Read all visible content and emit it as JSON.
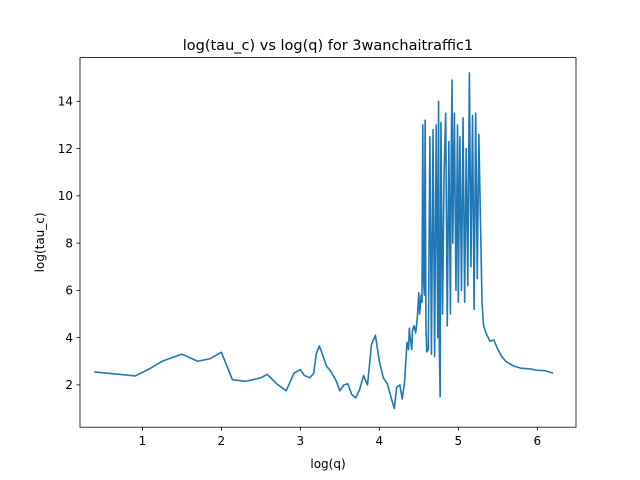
{
  "chart_data": {
    "type": "line",
    "title": "log(tau_c) vs log(q) for 3wanchaitraffic1",
    "xlabel": "log(q)",
    "ylabel": "log(tau_c)",
    "xlim": [
      0.21,
      6.49
    ],
    "ylim": [
      0.21,
      15.85
    ],
    "xticks": [
      1,
      2,
      3,
      4,
      5,
      6
    ],
    "yticks": [
      2,
      4,
      6,
      8,
      10,
      12,
      14
    ],
    "grid": false,
    "legend": "none",
    "series": [
      {
        "color": "#1f77b4",
        "x": [
          0.39,
          0.91,
          1.1,
          1.25,
          1.5,
          1.7,
          1.85,
          2.0,
          2.14,
          2.3,
          2.4,
          2.5,
          2.58,
          2.7,
          2.82,
          2.92,
          3.0,
          3.05,
          3.12,
          3.17,
          3.2,
          3.24,
          3.28,
          3.33,
          3.38,
          3.45,
          3.5,
          3.55,
          3.6,
          3.65,
          3.7,
          3.75,
          3.8,
          3.85,
          3.88,
          3.9,
          3.95,
          4.0,
          4.05,
          4.1,
          4.15,
          4.19,
          4.22,
          4.26,
          4.29,
          4.32,
          4.35,
          4.37,
          4.38,
          4.39,
          4.41,
          4.42,
          4.44,
          4.46,
          4.48,
          4.5,
          4.51,
          4.53,
          4.54,
          4.55,
          4.56,
          4.57,
          4.58,
          4.59,
          4.6,
          4.62,
          4.64,
          4.66,
          4.68,
          4.7,
          4.72,
          4.74,
          4.75,
          4.76,
          4.77,
          4.78,
          4.8,
          4.82,
          4.84,
          4.86,
          4.88,
          4.9,
          4.91,
          4.92,
          4.93,
          4.95,
          4.97,
          4.99,
          5.0,
          5.02,
          5.04,
          5.06,
          5.08,
          5.1,
          5.12,
          5.14,
          5.16,
          5.18,
          5.2,
          5.22,
          5.24,
          5.26,
          5.28,
          5.3,
          5.32,
          5.35,
          5.4,
          5.45,
          5.5,
          5.55,
          5.6,
          5.65,
          5.7,
          5.8,
          5.9,
          6.0,
          6.1,
          6.2
        ],
        "y": [
          2.55,
          2.38,
          2.7,
          3.0,
          3.3,
          3.0,
          3.1,
          3.38,
          2.22,
          2.15,
          2.22,
          2.3,
          2.45,
          2.05,
          1.75,
          2.5,
          2.65,
          2.4,
          2.3,
          2.5,
          3.3,
          3.65,
          3.3,
          2.8,
          2.6,
          2.2,
          1.75,
          2.0,
          2.05,
          1.6,
          1.45,
          1.8,
          2.4,
          2.0,
          3.0,
          3.7,
          4.1,
          3.0,
          2.3,
          2.05,
          1.45,
          1.0,
          1.9,
          2.0,
          1.4,
          2.15,
          3.8,
          3.5,
          4.4,
          4.0,
          3.5,
          4.3,
          4.5,
          4.2,
          4.8,
          5.9,
          5.0,
          5.8,
          5.5,
          13.0,
          6.5,
          5.8,
          13.2,
          4.5,
          3.4,
          3.5,
          12.5,
          3.3,
          12.8,
          3.2,
          13.0,
          4.0,
          14.0,
          3.5,
          1.5,
          13.1,
          5.0,
          11.0,
          13.5,
          4.5,
          12.3,
          5.0,
          11.6,
          14.9,
          8.0,
          13.5,
          6.0,
          13.0,
          5.5,
          12.5,
          6.0,
          13.3,
          5.5,
          12.0,
          6.2,
          15.2,
          7.0,
          13.4,
          5.2,
          13.5,
          6.5,
          12.6,
          9.0,
          5.5,
          4.5,
          4.2,
          3.85,
          3.9,
          3.5,
          3.2,
          3.0,
          2.9,
          2.8,
          2.7,
          2.68,
          2.62,
          2.6,
          2.5
        ]
      }
    ]
  }
}
